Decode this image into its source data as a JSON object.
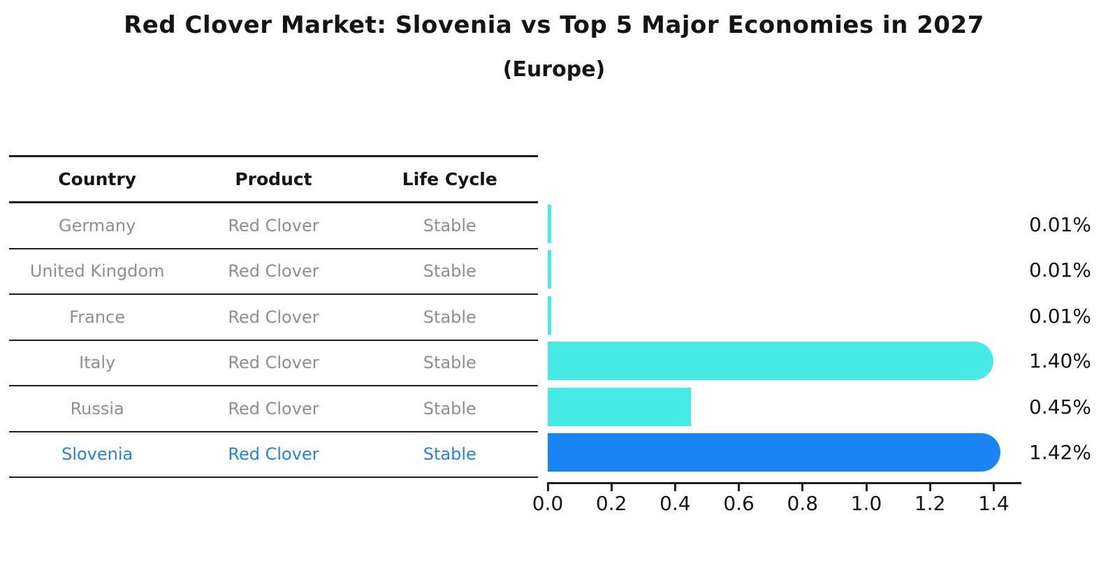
{
  "title": "Red Clover Market: Slovenia vs Top 5 Major Economies in 2027",
  "subtitle": "(Europe)",
  "table": {
    "headers": [
      "Country",
      "Product",
      "Life Cycle"
    ],
    "rows": [
      {
        "country": "Germany",
        "product": "Red Clover",
        "life_cycle": "Stable"
      },
      {
        "country": "United Kingdom",
        "product": "Red Clover",
        "life_cycle": "Stable"
      },
      {
        "country": "France",
        "product": "Red Clover",
        "life_cycle": "Stable"
      },
      {
        "country": "Italy",
        "product": "Red Clover",
        "life_cycle": "Stable"
      },
      {
        "country": "Russia",
        "product": "Red Clover",
        "life_cycle": "Stable"
      },
      {
        "country": "Slovenia",
        "product": "Red Clover",
        "life_cycle": "Stable"
      }
    ]
  },
  "chart_data": {
    "type": "bar",
    "orientation": "horizontal",
    "title": "Red Clover Market: Slovenia vs Top 5 Major Economies in 2027",
    "subtitle": "(Europe)",
    "categories": [
      "Germany",
      "United Kingdom",
      "France",
      "Italy",
      "Russia",
      "Slovenia"
    ],
    "values": [
      0.01,
      0.01,
      0.01,
      1.4,
      0.45,
      1.42
    ],
    "value_labels": [
      "0.01%",
      "0.01%",
      "0.01%",
      "1.40%",
      "0.45%",
      "1.42%"
    ],
    "xticks": [
      0.0,
      0.2,
      0.4,
      0.6,
      0.8,
      1.0,
      1.2,
      1.4
    ],
    "xtick_labels": [
      "0.0",
      "0.2",
      "0.4",
      "0.6",
      "0.8",
      "1.0",
      "1.2",
      "1.4"
    ],
    "xlim": [
      0,
      1.49
    ],
    "xlabel": "",
    "ylabel": "",
    "grid": false,
    "legend": false,
    "highlight_index": 5
  },
  "colors": {
    "bar": "#47EBE6",
    "highlight_bar": "#1A85F2",
    "highlight_text": "#2882D6",
    "row_text": "#8E8E8E",
    "header_text": "#141414",
    "value_text": "#141414",
    "line": "#1F1F1F"
  }
}
